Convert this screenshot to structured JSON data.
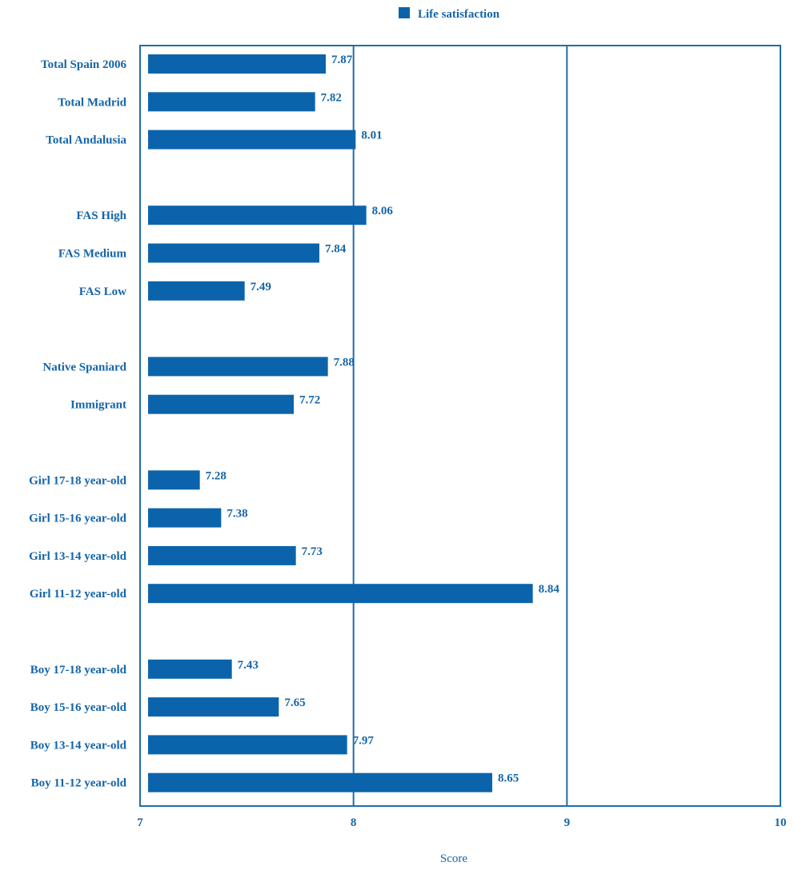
{
  "chart_data": {
    "type": "bar",
    "orientation": "horizontal",
    "categories": [
      "Total Spain 2006",
      "Total Madrid",
      "Total Andalusia",
      "FAS High",
      "FAS  Medium",
      "FAS  Low",
      "Native Spaniard",
      "Immigrant",
      "Girl 17-18 year-old",
      "Girl 15-16 year-old",
      "Girl 13-14 year-old",
      "Girl 11-12 year-old",
      "Boy 17-18 year-old",
      "Boy 15-16 year-old",
      "Boy 13-14 year-old",
      "Boy 11-12 year-old"
    ],
    "group_sizes": [
      3,
      3,
      2,
      4,
      4
    ],
    "series": [
      {
        "name": "Life satisfaction",
        "values": [
          7.87,
          7.82,
          8.01,
          8.06,
          7.84,
          7.49,
          7.88,
          7.72,
          7.28,
          7.38,
          7.73,
          8.84,
          7.43,
          7.65,
          7.97,
          8.65
        ],
        "labels": [
          "7.87",
          "7.82",
          "8.01",
          "8.06",
          "7.84",
          "7.49",
          "7.88",
          "7.72",
          "7.28",
          "7.38",
          "7.73",
          "8.84",
          "7.43",
          "7.65",
          "7.97",
          "8.65"
        ]
      }
    ],
    "xlabel": "Score",
    "xlim": [
      7,
      10
    ],
    "xticks": [
      "7",
      "8",
      "9",
      "10"
    ],
    "xtick_values": [
      7,
      8,
      9,
      10
    ],
    "grid": "vertical lines at major ticks",
    "legend_position": "top-center",
    "colors": {
      "bar": "#0b64ab",
      "text": "#1565a8",
      "axis": "#1f6ea8"
    }
  }
}
